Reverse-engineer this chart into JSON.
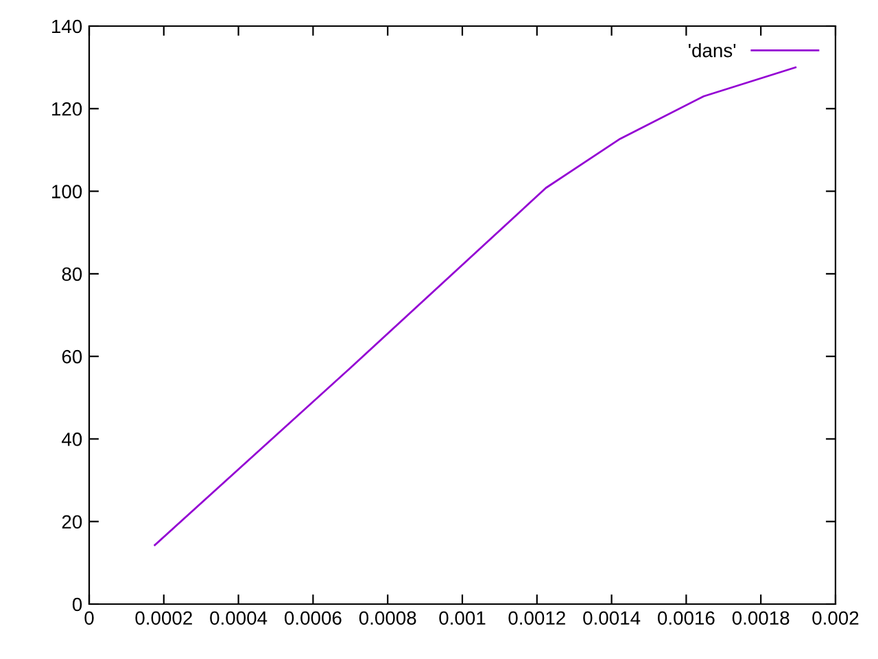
{
  "chart_data": {
    "type": "line",
    "series": [
      {
        "name": "'dans'",
        "color": "#9400d3",
        "x": [
          0.000176,
          0.0007,
          0.001224,
          0.001423,
          0.001647,
          0.001893
        ],
        "values": [
          14.3,
          57.2,
          100.8,
          112.7,
          123,
          130
        ]
      }
    ],
    "xlim": [
      0,
      0.002
    ],
    "xticks": [
      0,
      0.0002,
      0.0004,
      0.0006,
      0.0008,
      0.001,
      0.0012,
      0.0014,
      0.0016,
      0.0018,
      0.002
    ],
    "ylim": [
      0,
      140
    ],
    "yticks": [
      0,
      20,
      40,
      60,
      80,
      100,
      120,
      140
    ],
    "legend": "top right",
    "grid": false,
    "marker": "none",
    "line_style": "solid"
  }
}
